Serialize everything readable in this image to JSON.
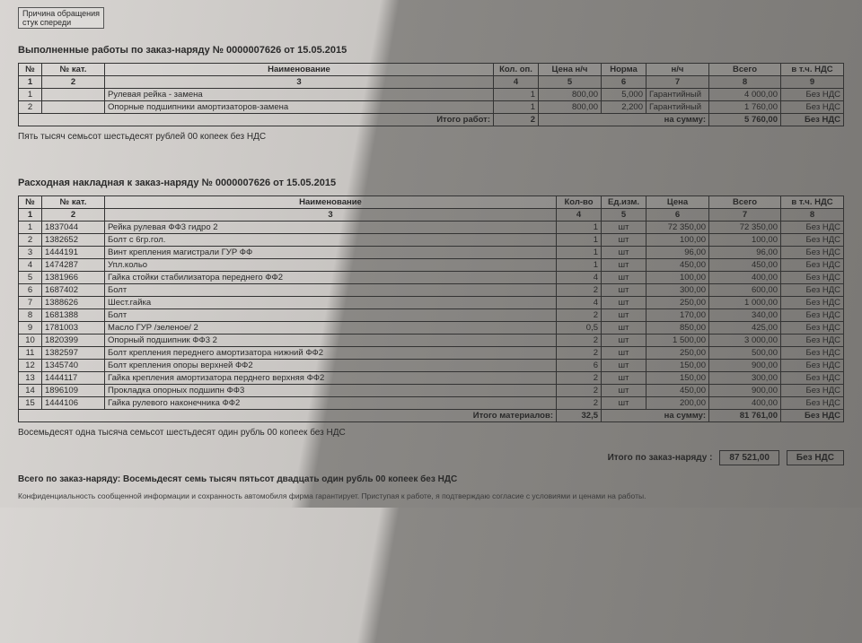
{
  "header": {
    "reason_label": "Причина обращения",
    "reason_value": "стук спереди"
  },
  "works": {
    "title": "Выполненные работы по заказ-наряду №  0000007626 от 15.05.2015",
    "headers": [
      "№",
      "№ кат.",
      "Наименование",
      "Кол. оп.",
      "Цена н/ч",
      "Норма",
      "н/ч",
      "Всего",
      "в т.ч. НДС"
    ],
    "numrow": [
      "1",
      "2",
      "3",
      "4",
      "5",
      "6",
      "7",
      "8",
      "9"
    ],
    "rows": [
      {
        "n": "1",
        "kat": "",
        "name": "Рулевая рейка - замена",
        "qty": "1",
        "price": "800,00",
        "norm": "5,000",
        "nch": "Гарантийный",
        "total": "4 000,00",
        "nds": "Без НДС"
      },
      {
        "n": "2",
        "kat": "",
        "name": "Опорные подшипники амортизаторов-замена",
        "qty": "1",
        "price": "800,00",
        "norm": "2,200",
        "nch": "Гарантийный",
        "total": "1 760,00",
        "nds": "Без НДС"
      }
    ],
    "footer_label": "Итого работ:",
    "footer_qty": "2",
    "footer_sum_label": "на сумму:",
    "footer_total": "5 760,00",
    "footer_nds": "Без НДС",
    "words": "Пять тысяч семьсот шестьдесят рублей 00 копеек без НДС"
  },
  "parts": {
    "title": "Расходная накладная к заказ-наряду №  0000007626 от 15.05.2015",
    "headers": [
      "№",
      "№ кат.",
      "Наименование",
      "Кол-во",
      "Ед.изм.",
      "Цена",
      "Всего",
      "в т.ч. НДС"
    ],
    "numrow": [
      "1",
      "2",
      "3",
      "4",
      "5",
      "6",
      "7",
      "8"
    ],
    "rows": [
      {
        "n": "1",
        "kat": "1837044",
        "name": "Рейка рулевая ФФ3 гидро 2",
        "qty": "1",
        "unit": "шт",
        "price": "72 350,00",
        "total": "72 350,00",
        "nds": "Без НДС"
      },
      {
        "n": "2",
        "kat": "1382652",
        "name": "Болт с 6гр.гол.",
        "qty": "1",
        "unit": "шт",
        "price": "100,00",
        "total": "100,00",
        "nds": "Без НДС"
      },
      {
        "n": "3",
        "kat": "1444191",
        "name": "Винт крепления магистрали ГУР ФФ",
        "qty": "1",
        "unit": "шт",
        "price": "96,00",
        "total": "96,00",
        "nds": "Без НДС"
      },
      {
        "n": "4",
        "kat": "1474287",
        "name": "Упл.кольо",
        "qty": "1",
        "unit": "шт",
        "price": "450,00",
        "total": "450,00",
        "nds": "Без НДС"
      },
      {
        "n": "5",
        "kat": "1381966",
        "name": "Гайка стойки стабилизатора переднего ФФ2",
        "qty": "4",
        "unit": "шт",
        "price": "100,00",
        "total": "400,00",
        "nds": "Без НДС"
      },
      {
        "n": "6",
        "kat": "1687402",
        "name": "Болт",
        "qty": "2",
        "unit": "шт",
        "price": "300,00",
        "total": "600,00",
        "nds": "Без НДС"
      },
      {
        "n": "7",
        "kat": "1388626",
        "name": "Шест.гайка",
        "qty": "4",
        "unit": "шт",
        "price": "250,00",
        "total": "1 000,00",
        "nds": "Без НДС"
      },
      {
        "n": "8",
        "kat": "1681388",
        "name": "Болт",
        "qty": "2",
        "unit": "шт",
        "price": "170,00",
        "total": "340,00",
        "nds": "Без НДС"
      },
      {
        "n": "9",
        "kat": "1781003",
        "name": "Масло ГУР /зеленое/ 2",
        "qty": "0,5",
        "unit": "шт",
        "price": "850,00",
        "total": "425,00",
        "nds": "Без НДС"
      },
      {
        "n": "10",
        "kat": "1820399",
        "name": "Опорный подшипник ФФ3 2",
        "qty": "2",
        "unit": "шт",
        "price": "1 500,00",
        "total": "3 000,00",
        "nds": "Без НДС"
      },
      {
        "n": "11",
        "kat": "1382597",
        "name": "Болт крепления переднего амортизатора нижний ФФ2",
        "qty": "2",
        "unit": "шт",
        "price": "250,00",
        "total": "500,00",
        "nds": "Без НДС"
      },
      {
        "n": "12",
        "kat": "1345740",
        "name": "Болт крепления опоры верхней ФФ2",
        "qty": "6",
        "unit": "шт",
        "price": "150,00",
        "total": "900,00",
        "nds": "Без НДС"
      },
      {
        "n": "13",
        "kat": "1444117",
        "name": "Гайка крепления амортизатора перднего верхняя ФФ2",
        "qty": "2",
        "unit": "шт",
        "price": "150,00",
        "total": "300,00",
        "nds": "Без НДС"
      },
      {
        "n": "14",
        "kat": "1896109",
        "name": "Прокладка опорных подшипн ФФ3",
        "qty": "2",
        "unit": "шт",
        "price": "450,00",
        "total": "900,00",
        "nds": "Без НДС"
      },
      {
        "n": "15",
        "kat": "1444106",
        "name": "Гайка рулевого наконечника ФФ2",
        "qty": "2",
        "unit": "шт",
        "price": "200,00",
        "total": "400,00",
        "nds": "Без НДС"
      }
    ],
    "footer_label": "Итого материалов:",
    "footer_qty": "32,5",
    "footer_sum_label": "на сумму:",
    "footer_total": "81 761,00",
    "footer_nds": "Без НДС",
    "words": "Восемьдесят одна тысяча семьсот шестьдесят один рубль 00 копеек без НДС"
  },
  "grand": {
    "label": "Итого по заказ-наряду :",
    "total": "87 521,00",
    "nds": "Без НДС"
  },
  "bottom_line": "Всего по заказ-наряду: Восемьдесят семь тысяч пятьсот двадцать один рубль 00 копеек без НДС",
  "fine": "Конфиденциальность сообщенной информации и сохранность автомобиля фирма гарантирует. Приступая к работе, я подтверждаю согласие с условиями и ценами на работы."
}
